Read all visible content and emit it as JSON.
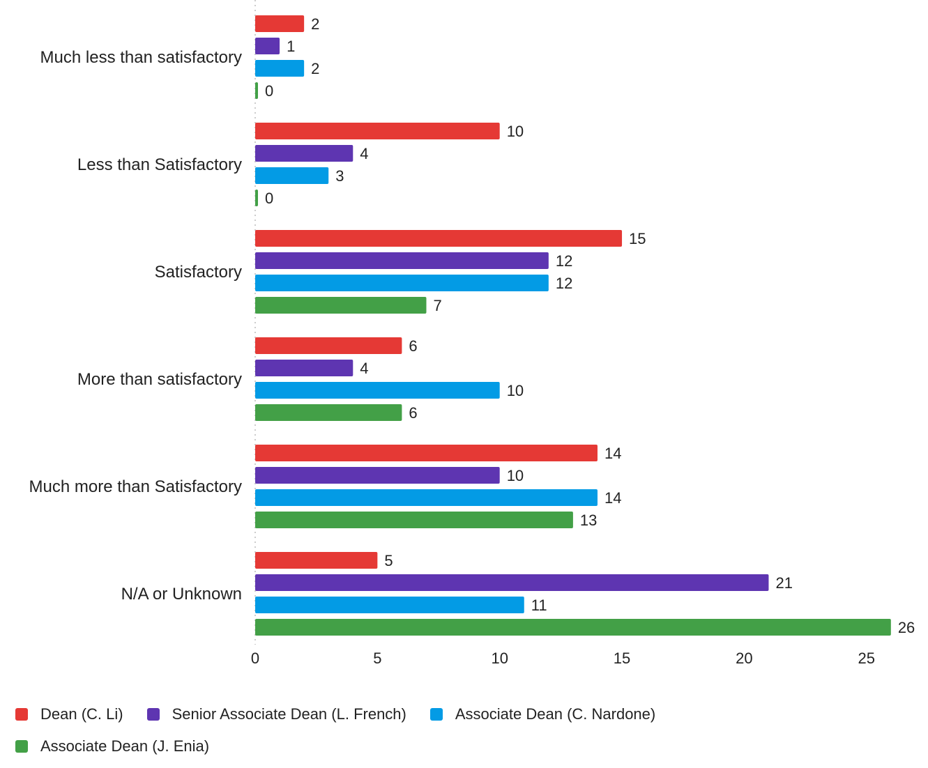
{
  "chart_data": {
    "type": "bar",
    "orientation": "horizontal",
    "categories": [
      "Much less than satisfactory",
      "Less than Satisfactory",
      "Satisfactory",
      "More than satisfactory",
      "Much more than Satisfactory",
      "N/A or Unknown"
    ],
    "series": [
      {
        "name": "Dean (C. Li)",
        "color": "#e53935",
        "values": [
          2,
          10,
          15,
          6,
          14,
          5
        ]
      },
      {
        "name": "Senior Associate Dean (L. French)",
        "color": "#5e35b1",
        "values": [
          1,
          4,
          12,
          4,
          10,
          21
        ]
      },
      {
        "name": "Associate Dean (C. Nardone)",
        "color": "#039be5",
        "values": [
          2,
          3,
          12,
          10,
          14,
          11
        ]
      },
      {
        "name": "Associate Dean (J. Enia)",
        "color": "#43a047",
        "values": [
          0,
          0,
          7,
          6,
          13,
          26
        ]
      }
    ],
    "xticks": [
      "0",
      "5",
      "10",
      "15",
      "20",
      "25"
    ],
    "xlim": [
      0,
      26
    ],
    "legend_position": "bottom",
    "grid": false
  }
}
